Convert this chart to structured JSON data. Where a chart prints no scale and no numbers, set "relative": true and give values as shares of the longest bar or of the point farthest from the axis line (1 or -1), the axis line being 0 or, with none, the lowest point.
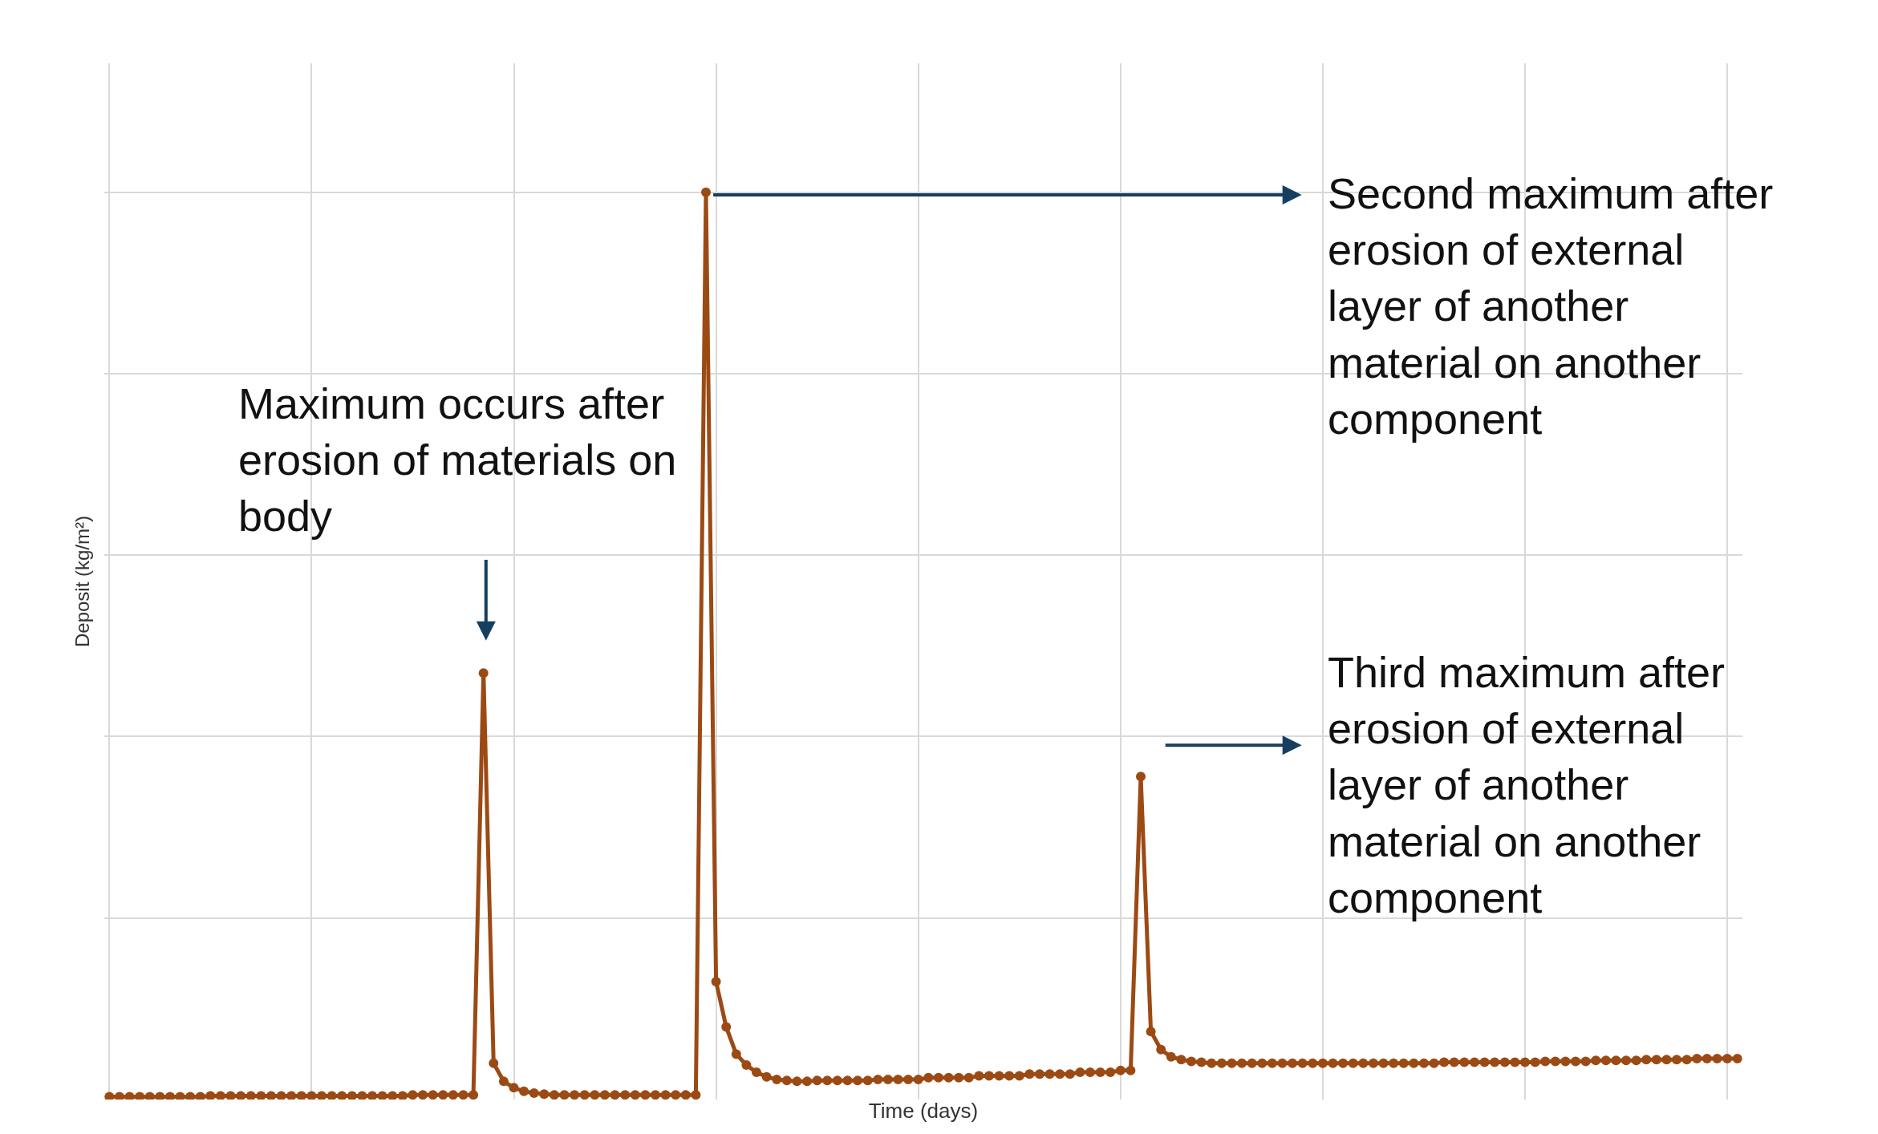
{
  "chart_data": {
    "type": "line",
    "relative": true,
    "xlabel": "Time (days)",
    "ylabel": "Deposit (kg/m²)",
    "color": "#9c4a14",
    "marker": "circle",
    "grid": true,
    "categories": [
      null,
      null,
      null,
      null,
      null,
      null,
      null,
      null,
      null,
      null,
      null,
      null,
      null,
      null,
      null,
      null,
      null,
      null,
      null,
      null,
      null,
      null,
      null,
      null,
      null,
      null,
      null,
      null,
      null,
      null,
      null,
      null,
      null,
      null,
      null,
      null,
      null,
      null,
      null,
      null,
      null,
      null,
      null,
      null,
      null,
      null,
      null,
      null,
      null,
      null,
      null,
      null,
      null,
      null,
      null,
      null,
      null,
      null,
      null,
      null,
      null,
      null,
      null,
      null,
      null,
      null,
      null,
      null,
      null,
      null,
      null,
      null,
      null,
      null,
      null,
      null,
      null,
      null,
      null,
      null,
      null,
      null,
      null,
      null,
      null,
      null,
      null,
      null,
      null,
      null,
      null,
      null,
      null,
      null,
      null,
      null,
      null,
      null,
      null,
      null,
      null,
      null,
      null,
      null,
      null,
      null,
      null,
      null,
      null,
      null,
      null,
      null,
      null,
      null,
      null,
      null,
      null,
      null,
      null,
      null,
      null,
      null,
      null,
      null,
      null,
      null,
      null,
      null,
      null,
      null,
      null,
      null,
      null,
      null,
      null,
      null,
      null,
      null,
      null,
      null,
      null,
      null,
      null,
      null,
      null,
      null,
      null,
      null,
      null,
      null,
      null,
      null,
      null,
      null,
      null,
      null,
      null,
      null,
      null,
      null,
      null,
      null
    ],
    "values": [
      0.003,
      0.003,
      0.003,
      0.003,
      0.003,
      0.003,
      0.003,
      0.003,
      0.003,
      0.003,
      0.004,
      0.004,
      0.004,
      0.004,
      0.004,
      0.004,
      0.004,
      0.004,
      0.004,
      0.004,
      0.004,
      0.004,
      0.004,
      0.004,
      0.004,
      0.004,
      0.004,
      0.004,
      0.004,
      0.004,
      0.005,
      0.005,
      0.005,
      0.005,
      0.005,
      0.005,
      0.005,
      0.47,
      0.04,
      0.02,
      0.013,
      0.009,
      0.007,
      0.006,
      0.005,
      0.005,
      0.005,
      0.005,
      0.005,
      0.005,
      0.005,
      0.005,
      0.005,
      0.005,
      0.005,
      0.005,
      0.005,
      0.005,
      0.005,
      1.0,
      0.13,
      0.08,
      0.05,
      0.038,
      0.03,
      0.025,
      0.022,
      0.021,
      0.02,
      0.02,
      0.021,
      0.021,
      0.021,
      0.021,
      0.021,
      0.021,
      0.022,
      0.022,
      0.022,
      0.022,
      0.022,
      0.024,
      0.024,
      0.024,
      0.024,
      0.024,
      0.026,
      0.026,
      0.026,
      0.026,
      0.026,
      0.028,
      0.028,
      0.028,
      0.028,
      0.028,
      0.03,
      0.03,
      0.03,
      0.03,
      0.032,
      0.032,
      0.356,
      0.075,
      0.055,
      0.047,
      0.044,
      0.042,
      0.041,
      0.04,
      0.04,
      0.04,
      0.04,
      0.04,
      0.04,
      0.04,
      0.04,
      0.04,
      0.04,
      0.04,
      0.04,
      0.04,
      0.04,
      0.04,
      0.04,
      0.04,
      0.04,
      0.04,
      0.04,
      0.04,
      0.04,
      0.04,
      0.041,
      0.041,
      0.041,
      0.041,
      0.041,
      0.041,
      0.041,
      0.041,
      0.041,
      0.041,
      0.042,
      0.042,
      0.042,
      0.042,
      0.042,
      0.043,
      0.043,
      0.043,
      0.043,
      0.043,
      0.044,
      0.044,
      0.044,
      0.044,
      0.044,
      0.045,
      0.045,
      0.045,
      0.045,
      0.045
    ],
    "annotations": [
      "Maximum occurs after\nerosion of materials on\nbody",
      "Second maximum after\nerosion of external\nlayer of another\nmaterial on another\ncomponent",
      "Third maximum after\nerosion of external\nlayer of another\nmaterial on another\ncomponent"
    ]
  }
}
